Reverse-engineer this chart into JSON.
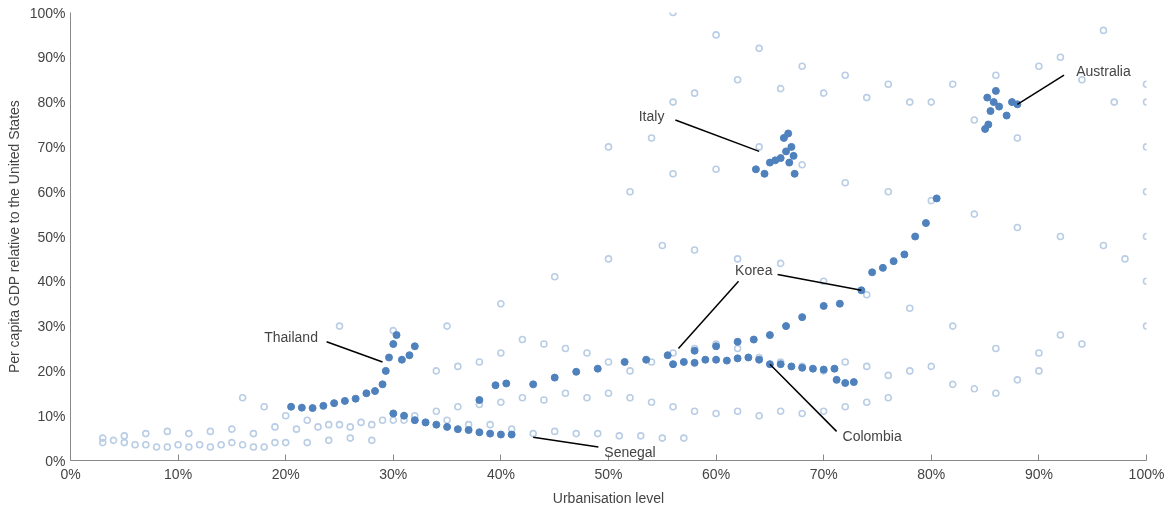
{
  "chart_data": {
    "type": "scatter",
    "xlabel": "Urbanisation level",
    "ylabel": "Per capita GDP relative to the United States",
    "xlim": [
      0,
      100
    ],
    "ylim": [
      0,
      100
    ],
    "xticks": [
      {
        "value": 0,
        "label": "0%"
      },
      {
        "value": 10,
        "label": "10%"
      },
      {
        "value": 20,
        "label": "20%"
      },
      {
        "value": 30,
        "label": "30%"
      },
      {
        "value": 40,
        "label": "40%"
      },
      {
        "value": 50,
        "label": "50%"
      },
      {
        "value": 60,
        "label": "60%"
      },
      {
        "value": 70,
        "label": "70%"
      },
      {
        "value": 80,
        "label": "80%"
      },
      {
        "value": 90,
        "label": "90%"
      },
      {
        "value": 100,
        "label": "100%"
      }
    ],
    "yticks": [
      {
        "value": 0,
        "label": "0%"
      },
      {
        "value": 10,
        "label": "10%"
      },
      {
        "value": 20,
        "label": "20%"
      },
      {
        "value": 30,
        "label": "30%"
      },
      {
        "value": 40,
        "label": "40%"
      },
      {
        "value": 50,
        "label": "50%"
      },
      {
        "value": 60,
        "label": "60%"
      },
      {
        "value": 70,
        "label": "70%"
      },
      {
        "value": 80,
        "label": "80%"
      },
      {
        "value": 90,
        "label": "90%"
      },
      {
        "value": 100,
        "label": "100%"
      }
    ],
    "grid": false,
    "marker": "circle",
    "series": [
      {
        "color": "#b9cde5",
        "x": [
          3,
          4,
          5,
          6,
          7,
          8,
          9,
          10,
          11,
          12,
          13,
          14,
          15,
          16,
          17,
          18,
          19,
          20,
          22,
          24,
          26,
          28,
          3,
          5,
          7,
          9,
          11,
          13,
          15,
          17,
          19,
          21,
          23,
          25,
          27,
          29,
          31,
          33,
          35,
          37,
          39,
          41,
          43,
          45,
          47,
          49,
          51,
          53,
          55,
          57,
          16,
          18,
          20,
          22,
          24,
          26,
          28,
          30,
          32,
          34,
          36,
          38,
          40,
          42,
          44,
          46,
          48,
          50,
          52,
          54,
          56,
          58,
          60,
          62,
          64,
          66,
          68,
          70,
          72,
          74,
          76,
          34,
          36,
          38,
          40,
          42,
          44,
          46,
          48,
          50,
          52,
          54,
          56,
          58,
          60,
          62,
          64,
          66,
          68,
          70,
          72,
          74,
          76,
          78,
          80,
          82,
          84,
          86,
          88,
          90,
          92,
          94,
          25,
          30,
          35,
          40,
          45,
          50,
          55,
          58,
          62,
          66,
          70,
          74,
          78,
          82,
          86,
          90,
          52,
          56,
          60,
          64,
          68,
          72,
          76,
          80,
          84,
          88,
          92,
          96,
          98,
          50,
          54,
          56,
          58,
          62,
          66,
          70,
          74,
          78,
          82,
          86,
          90,
          94,
          97,
          100,
          100,
          100,
          100,
          100,
          100,
          100,
          56,
          60,
          64,
          68,
          72,
          76,
          80,
          84,
          88,
          92,
          96
        ],
        "values": [
          4,
          4.5,
          4,
          3.5,
          3.5,
          3,
          3,
          3.5,
          3,
          3.5,
          3,
          3.5,
          4,
          3.5,
          3,
          3,
          4,
          4,
          4,
          4.5,
          5,
          4.5,
          5,
          5.5,
          6,
          6.5,
          6,
          6.5,
          7,
          6,
          7.5,
          7,
          7.5,
          8,
          8.5,
          9,
          9,
          8.5,
          9,
          8,
          8,
          7,
          6,
          6.5,
          6,
          6,
          5.5,
          5.5,
          5,
          5,
          14,
          12,
          10,
          9,
          8,
          7.5,
          8,
          9,
          10,
          11,
          12,
          12.5,
          13,
          14,
          13.5,
          15,
          14,
          15,
          14,
          13,
          12,
          11,
          10.5,
          11,
          10,
          11,
          10.5,
          11,
          12,
          13,
          14,
          20,
          21,
          22,
          24,
          27,
          26,
          25,
          24,
          22,
          20,
          22,
          24,
          25,
          26,
          25,
          23,
          22,
          21,
          20,
          22,
          21,
          19,
          20,
          21,
          17,
          16,
          15,
          18,
          24,
          28,
          26,
          30,
          29,
          30,
          35,
          41,
          45,
          48,
          47,
          45,
          44,
          40,
          37,
          34,
          30,
          25,
          20,
          60,
          64,
          65,
          70,
          66,
          62,
          60,
          58,
          55,
          52,
          50,
          48,
          45,
          70,
          72,
          80,
          82,
          85,
          83,
          82,
          81,
          80,
          84,
          86,
          88,
          85,
          80,
          30,
          40,
          50,
          60,
          70,
          80,
          84,
          100,
          95,
          92,
          88,
          86,
          84,
          80,
          76,
          72,
          90,
          96
        ]
      },
      {
        "color": "#4f81bd",
        "x": [
          20.5,
          21.5,
          22.5,
          23.5,
          24.5,
          25.5,
          26.5,
          27.5,
          28.3,
          29,
          29.3,
          29.6,
          30,
          30.3,
          30.8,
          31.5,
          32
        ],
        "values": [
          12,
          11.8,
          11.7,
          12.2,
          12.8,
          13.3,
          13.8,
          15,
          15.5,
          17,
          20,
          23,
          26,
          28,
          22.5,
          23.5,
          25.5
        ]
      },
      {
        "color": "#4f81bd",
        "x": [
          30,
          31,
          32,
          33,
          34,
          35,
          36,
          37,
          38,
          39,
          40,
          41
        ],
        "values": [
          10.5,
          10,
          9,
          8.5,
          8,
          7.5,
          7,
          6.8,
          6.3,
          6,
          5.8,
          5.8
        ]
      },
      {
        "color": "#4f81bd",
        "x": [
          38,
          39.5,
          40.5,
          43,
          45,
          47,
          49,
          51.5,
          53.5,
          55.5,
          58,
          60,
          62,
          63.5,
          65,
          66.5,
          68,
          70,
          71.5,
          73.5,
          74.5,
          75.5,
          76.5,
          77.5,
          78.5,
          79.5,
          80.5
        ],
        "values": [
          13.5,
          16.8,
          17.2,
          17,
          18.5,
          19.8,
          20.5,
          22,
          22.5,
          23.5,
          24.5,
          25.5,
          26.5,
          27,
          28,
          30,
          32,
          34.5,
          35,
          38,
          42,
          43,
          44.5,
          46,
          50,
          53,
          58.5
        ]
      },
      {
        "color": "#4f81bd",
        "x": [
          56,
          57,
          58,
          59,
          60,
          61,
          62,
          63,
          64,
          65,
          66,
          67,
          68,
          69,
          70,
          71,
          71.2,
          72,
          72.8
        ],
        "values": [
          21.5,
          22,
          21.8,
          22.5,
          22.5,
          22.3,
          22.8,
          23,
          22.5,
          21.5,
          21.5,
          21,
          20.7,
          20.5,
          20.3,
          20.5,
          18,
          17.3,
          17.5
        ]
      },
      {
        "color": "#4f81bd",
        "x": [
          63.7,
          64.5,
          65,
          65.5,
          66,
          66.5,
          66.3,
          66.7,
          67,
          67.2,
          67.3,
          66.8
        ],
        "values": [
          65,
          64,
          66.5,
          67,
          67.5,
          69,
          72,
          73,
          70,
          68,
          64,
          66.5
        ]
      },
      {
        "color": "#4f81bd",
        "x": [
          85.3,
          85.5,
          85.8,
          86,
          86.3,
          87,
          87.5,
          88,
          85,
          85.2
        ],
        "values": [
          75,
          78,
          80,
          82.5,
          79,
          77,
          80,
          79.5,
          74,
          81
        ]
      }
    ],
    "annotations": [
      {
        "text": "Thailand",
        "x": 29,
        "y": 22
      },
      {
        "text": "Korea",
        "x": 73.5,
        "y": 38
      },
      {
        "text": "Colombia",
        "x": 65,
        "y": 21.5
      },
      {
        "text": "Senegal",
        "x": 43,
        "y": 5.2
      },
      {
        "text": "Italy",
        "x": 64,
        "y": 69
      },
      {
        "text": "Australia",
        "x": 88,
        "y": 79.5
      }
    ]
  }
}
